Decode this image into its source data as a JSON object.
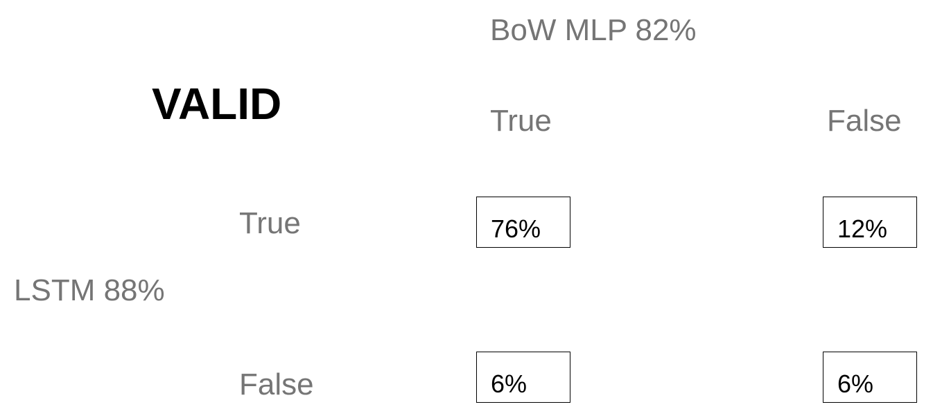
{
  "title": "VALID",
  "column_model": "BoW MLP 82%",
  "row_model": "LSTM 88%",
  "column_labels": [
    "True",
    "False"
  ],
  "row_labels": [
    "True",
    "False"
  ],
  "cells": [
    [
      "76%",
      "12%"
    ],
    [
      "6%",
      "6%"
    ]
  ]
}
